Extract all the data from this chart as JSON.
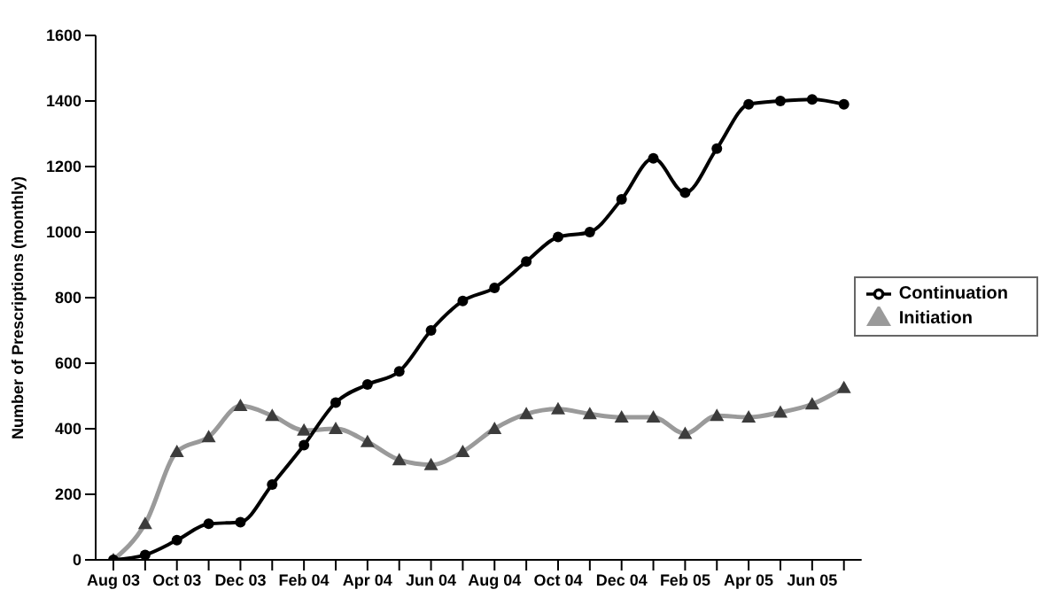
{
  "chart_data": {
    "type": "line",
    "ylabel": "Number of Prescriptions (monthly)",
    "categories": [
      "Aug 03",
      null,
      "Oct 03",
      null,
      "Dec 03",
      null,
      "Feb 04",
      null,
      "Apr 04",
      null,
      "Jun 04",
      null,
      "Aug 04",
      null,
      "Oct 04",
      null,
      "Dec 04",
      null,
      "Feb 05",
      null,
      "Apr 05",
      null,
      "Jun 05",
      null
    ],
    "series": [
      {
        "name": "Initiation",
        "color": "#9a9a9a",
        "marker": "triangle",
        "values": [
          0,
          110,
          330,
          375,
          470,
          440,
          395,
          400,
          360,
          305,
          290,
          330,
          400,
          445,
          460,
          445,
          435,
          435,
          385,
          440,
          435,
          450,
          475,
          525
        ]
      },
      {
        "name": "Continuation",
        "color": "#000000",
        "marker": "circle",
        "values": [
          0,
          15,
          60,
          110,
          115,
          230,
          350,
          480,
          535,
          575,
          700,
          790,
          830,
          910,
          985,
          1000,
          1100,
          1225,
          1120,
          1255,
          1390,
          1400,
          1405,
          1390
        ]
      }
    ],
    "ylim": [
      0,
      1600
    ],
    "yticks": [
      0,
      200,
      400,
      600,
      800,
      1000,
      1200,
      1400,
      1600
    ],
    "grid": false,
    "legend": "right"
  }
}
